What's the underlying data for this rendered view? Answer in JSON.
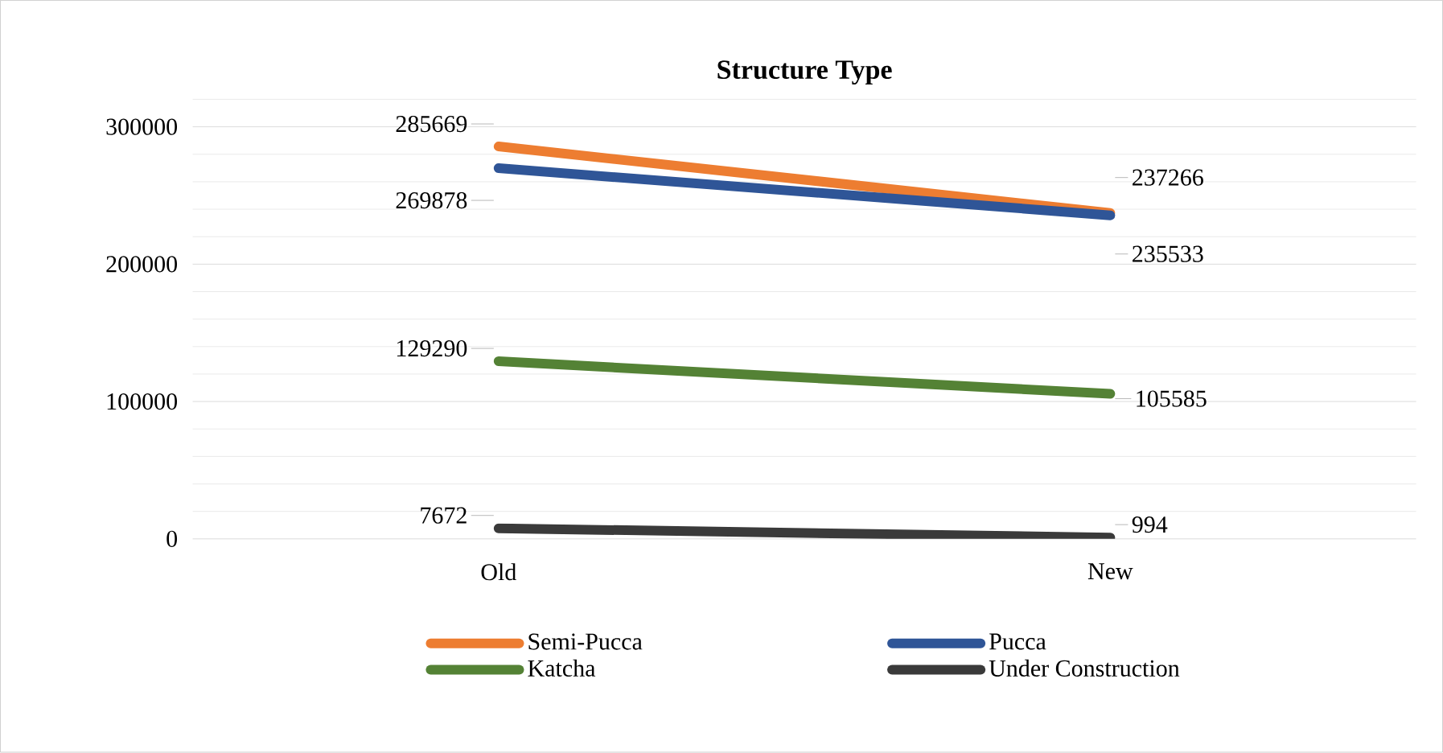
{
  "chart_data": {
    "type": "line",
    "title": "Structure Type",
    "categories": [
      "Old",
      "New"
    ],
    "series": [
      {
        "name": "Semi-Pucca",
        "color": "#ed7d31",
        "values": [
          285669,
          237266
        ]
      },
      {
        "name": "Pucca",
        "color": "#2f5597",
        "values": [
          269878,
          235533
        ]
      },
      {
        "name": "Katcha",
        "color": "#548235",
        "values": [
          129290,
          105585
        ]
      },
      {
        "name": "Under Construction",
        "color": "#3a3a3a",
        "values": [
          7672,
          994
        ]
      }
    ],
    "ylim": [
      0,
      320000
    ],
    "yticks": [
      0,
      100000,
      200000,
      300000
    ],
    "grid": "y",
    "legend": "bottom",
    "data_labels": true
  }
}
